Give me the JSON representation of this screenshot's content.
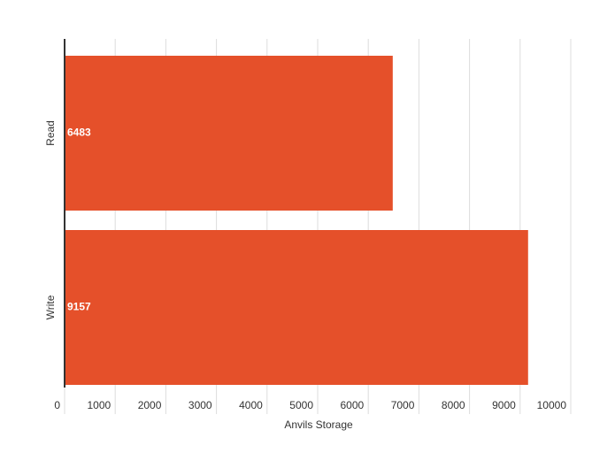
{
  "chart_data": {
    "type": "hbar",
    "categories": [
      "Read",
      "Write"
    ],
    "values": [
      6483,
      9157
    ],
    "color": "#e5502a",
    "xlabel": "Anvils Storage",
    "xlim": [
      0,
      10000
    ],
    "xticks": [
      0,
      1000,
      2000,
      3000,
      4000,
      5000,
      6000,
      7000,
      8000,
      9000,
      10000
    ],
    "grid": true
  }
}
